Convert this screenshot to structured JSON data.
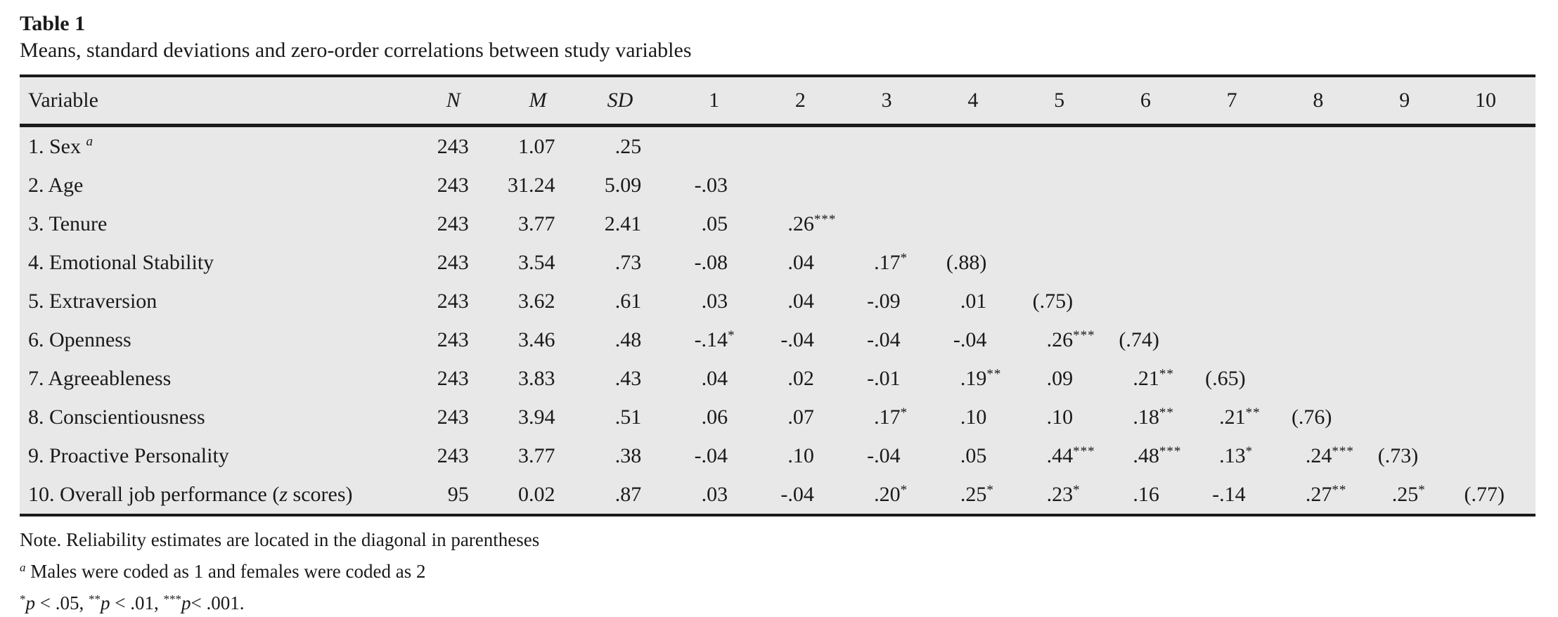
{
  "colors": {
    "table_band": "#e8e8e8",
    "rule": "#1b1b1b",
    "text": "#1a1a1a",
    "background": "#ffffff"
  },
  "table": {
    "label": "Table 1",
    "caption": "Means, standard deviations and zero-order correlations between study variables",
    "header": [
      {
        "label": "Variable",
        "italic": false
      },
      {
        "label": "N",
        "italic": true
      },
      {
        "label": "M",
        "italic": true
      },
      {
        "label": "SD",
        "italic": true
      },
      {
        "label": "1"
      },
      {
        "label": "2"
      },
      {
        "label": "3"
      },
      {
        "label": "4"
      },
      {
        "label": "5"
      },
      {
        "label": "6"
      },
      {
        "label": "7"
      },
      {
        "label": "8"
      },
      {
        "label": "9"
      },
      {
        "label": "10"
      }
    ],
    "rows": [
      {
        "name": [
          {
            "t": "1. Sex "
          },
          {
            "t": "a",
            "sup": true,
            "i": true
          }
        ],
        "values": [
          "243",
          "1.07",
          ".25",
          "",
          "",
          "",
          "",
          "",
          "",
          "",
          "",
          "",
          ""
        ]
      },
      {
        "name": [
          {
            "t": "2. Age"
          }
        ],
        "values": [
          "243",
          "31.24",
          "5.09",
          "-.03",
          "",
          "",
          "",
          "",
          "",
          "",
          "",
          "",
          ""
        ]
      },
      {
        "name": [
          {
            "t": "3. Tenure"
          }
        ],
        "values": [
          "243",
          "3.77",
          "2.41",
          ".05",
          ".26***",
          "",
          "",
          "",
          "",
          "",
          "",
          "",
          ""
        ]
      },
      {
        "name": [
          {
            "t": "4. Emotional Stability"
          }
        ],
        "values": [
          "243",
          "3.54",
          ".73",
          "-.08",
          ".04",
          ".17*",
          "(.88)",
          "",
          "",
          "",
          "",
          "",
          ""
        ]
      },
      {
        "name": [
          {
            "t": "5. Extraversion"
          }
        ],
        "values": [
          "243",
          "3.62",
          ".61",
          ".03",
          ".04",
          "-.09",
          ".01",
          "(.75)",
          "",
          "",
          "",
          "",
          ""
        ]
      },
      {
        "name": [
          {
            "t": "6. Openness"
          }
        ],
        "values": [
          "243",
          "3.46",
          ".48",
          "-.14*",
          "-.04",
          "-.04",
          "-.04",
          ".26***",
          "(.74)",
          "",
          "",
          "",
          ""
        ]
      },
      {
        "name": [
          {
            "t": "7. Agreeableness"
          }
        ],
        "values": [
          "243",
          "3.83",
          ".43",
          ".04",
          ".02",
          "-.01",
          ".19**",
          ".09",
          ".21**",
          "(.65)",
          "",
          "",
          ""
        ]
      },
      {
        "name": [
          {
            "t": "8. Conscientiousness"
          }
        ],
        "values": [
          "243",
          "3.94",
          ".51",
          ".06",
          ".07",
          ".17*",
          ".10",
          ".10",
          ".18**",
          ".21**",
          "(.76)",
          "",
          ""
        ]
      },
      {
        "name": [
          {
            "t": "9. Proactive Personality"
          }
        ],
        "values": [
          "243",
          "3.77",
          ".38",
          "-.04",
          ".10",
          "-.04",
          ".05",
          ".44***",
          ".48***",
          ".13*",
          ".24***",
          "(.73)",
          ""
        ]
      },
      {
        "name": [
          {
            "t": "10. Overall job performance ("
          },
          {
            "t": "z",
            "i": true
          },
          {
            "t": " scores)"
          }
        ],
        "values": [
          "95",
          "0.02",
          ".87",
          ".03",
          "-.04",
          ".20*",
          ".25*",
          ".23*",
          ".16",
          "-.14",
          ".27**",
          ".25*",
          "(.77)"
        ]
      }
    ],
    "notes": [
      [
        {
          "t": "Note. Reliability estimates are located in the diagonal in parentheses"
        }
      ],
      [
        {
          "t": "a",
          "sup": true,
          "i": true
        },
        {
          "t": " Males were coded as 1 and females were coded as 2"
        }
      ],
      [
        {
          "t": "*",
          "sup": true
        },
        {
          "t": "p",
          "i": true
        },
        {
          "t": " < .05, "
        },
        {
          "t": "**",
          "sup": true
        },
        {
          "t": "p",
          "i": true
        },
        {
          "t": " < .01, "
        },
        {
          "t": "***",
          "sup": true
        },
        {
          "t": "p",
          "i": true
        },
        {
          "t": "< .001."
        }
      ]
    ]
  },
  "chart_data": {
    "type": "table",
    "title": "Table 1",
    "subtitle": "Means, standard deviations and zero-order correlations between study variables",
    "columns": [
      "Variable",
      "N",
      "M",
      "SD",
      "1",
      "2",
      "3",
      "4",
      "5",
      "6",
      "7",
      "8",
      "9",
      "10"
    ],
    "rows": [
      [
        "1. Sex a",
        "243",
        "1.07",
        ".25",
        "",
        "",
        "",
        "",
        "",
        "",
        "",
        "",
        "",
        ""
      ],
      [
        "2. Age",
        "243",
        "31.24",
        "5.09",
        "-.03",
        "",
        "",
        "",
        "",
        "",
        "",
        "",
        "",
        ""
      ],
      [
        "3. Tenure",
        "243",
        "3.77",
        "2.41",
        ".05",
        ".26***",
        "",
        "",
        "",
        "",
        "",
        "",
        "",
        ""
      ],
      [
        "4. Emotional Stability",
        "243",
        "3.54",
        ".73",
        "-.08",
        ".04",
        ".17*",
        "(.88)",
        "",
        "",
        "",
        "",
        "",
        ""
      ],
      [
        "5. Extraversion",
        "243",
        "3.62",
        ".61",
        ".03",
        ".04",
        "-.09",
        ".01",
        "(.75)",
        "",
        "",
        "",
        "",
        ""
      ],
      [
        "6. Openness",
        "243",
        "3.46",
        ".48",
        "-.14*",
        "-.04",
        "-.04",
        "-.04",
        ".26***",
        "(.74)",
        "",
        "",
        "",
        ""
      ],
      [
        "7. Agreeableness",
        "243",
        "3.83",
        ".43",
        ".04",
        ".02",
        "-.01",
        ".19**",
        ".09",
        ".21**",
        "(.65)",
        "",
        "",
        ""
      ],
      [
        "8. Conscientiousness",
        "243",
        "3.94",
        ".51",
        ".06",
        ".07",
        ".17*",
        ".10",
        ".10",
        ".18**",
        ".21**",
        "(.76)",
        "",
        ""
      ],
      [
        "9. Proactive Personality",
        "243",
        "3.77",
        ".38",
        "-.04",
        ".10",
        "-.04",
        ".05",
        ".44***",
        ".48***",
        ".13*",
        ".24***",
        "(.73)",
        ""
      ],
      [
        "10. Overall job performance (z scores)",
        "95",
        "0.02",
        ".87",
        ".03",
        "-.04",
        ".20*",
        ".25*",
        ".23*",
        ".16",
        "-.14",
        ".27**",
        ".25*",
        "(.77)"
      ]
    ],
    "notes": [
      "Note. Reliability estimates are located in the diagonal in parentheses",
      "a Males were coded as 1 and females were coded as 2",
      "*p < .05, **p < .01, ***p< .001."
    ]
  }
}
